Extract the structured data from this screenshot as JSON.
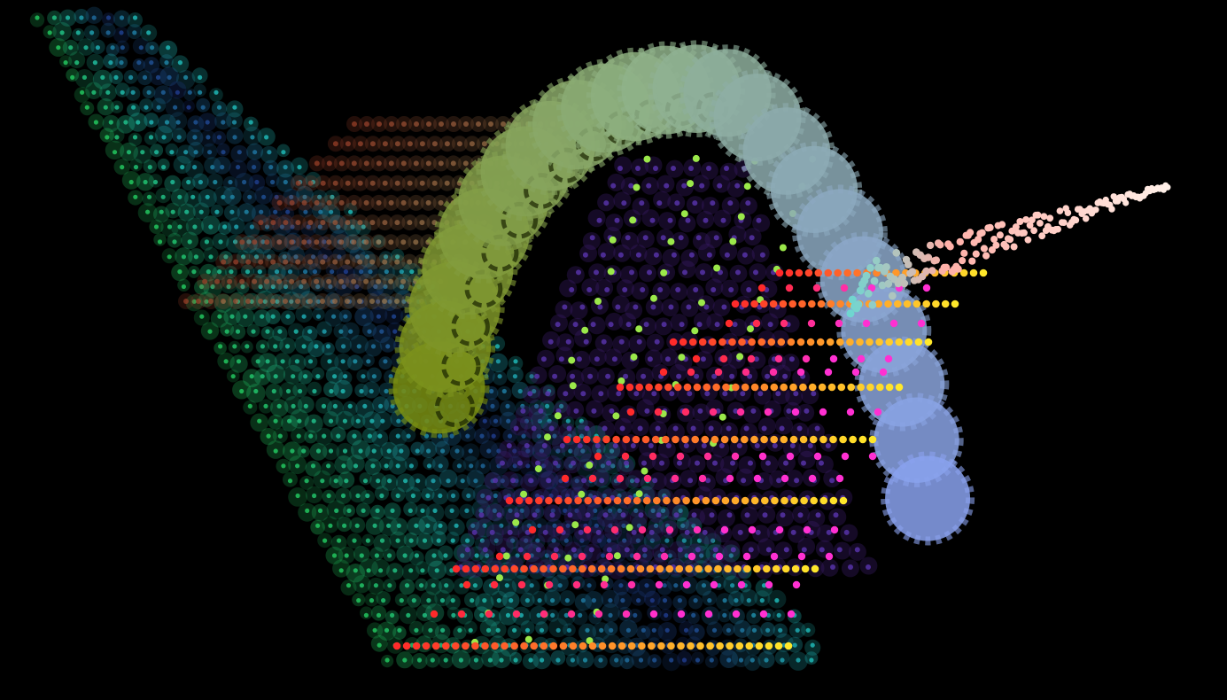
{
  "scene": {
    "background": "#000000",
    "palette": {
      "teal": "#1fb7b5",
      "green": "#22c55e",
      "navy": "#1e3a8a",
      "olive": "#7a8f12",
      "sage": "#8fb28a",
      "periwinkle": "#8aa2ee",
      "purple": "#3b1d6e",
      "red": "#ff2a2a",
      "orange": "#ff8a2a",
      "yellow": "#ffe82a",
      "magenta": "#ff30d2",
      "lime": "#9be84a",
      "cyan": "#6fd6d0",
      "pink": "#ffb0a8",
      "cream": "#fff0e8"
    }
  }
}
